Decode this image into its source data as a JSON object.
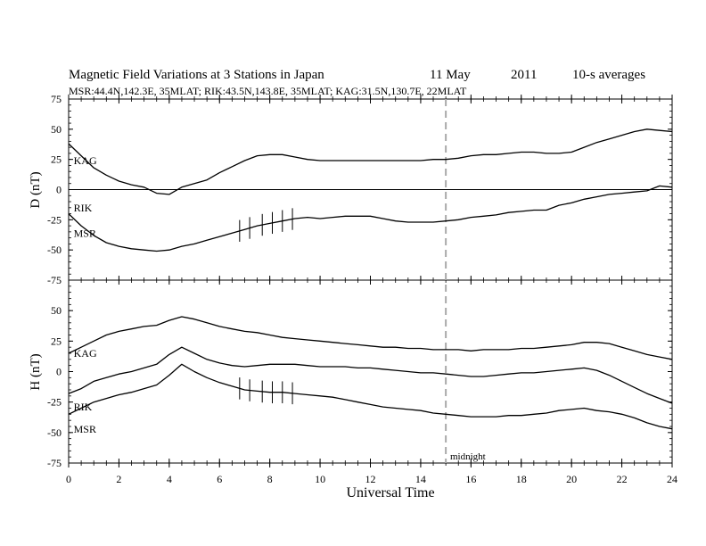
{
  "header": {
    "title": "Magnetic Field Variations at 3 Stations in Japan",
    "date_day": "11  May",
    "date_year": "2011",
    "averaging": "10-s averages",
    "stations_line": "MSR:44.4N,142.3E, 35MLAT;  RIK:43.5N,143.8E, 35MLAT;  KAG:31.5N,130.7E, 22MLAT"
  },
  "colors": {
    "trace": "#000000",
    "midnight_line": "#aaaaaa",
    "frame": "#000000"
  },
  "chart_data": [
    {
      "type": "line",
      "panel": "top",
      "ylabel": "D (nT)",
      "ylim": [
        -75,
        75
      ],
      "yticks": [
        "75",
        "50",
        "25",
        "0",
        "-25",
        "-50",
        "-75"
      ],
      "zero_line": true,
      "series": [
        {
          "name": "KAG",
          "x": [
            0,
            0.5,
            1,
            1.5,
            2,
            2.5,
            3,
            3.5,
            4,
            4.5,
            5,
            5.5,
            6,
            6.5,
            7,
            7.5,
            8,
            8.5,
            9,
            9.5,
            10,
            10.5,
            11,
            11.5,
            12,
            12.5,
            13,
            13.5,
            14,
            14.5,
            15,
            15.5,
            16,
            16.5,
            17,
            17.5,
            18,
            18.5,
            19,
            19.5,
            20,
            20.5,
            21,
            21.5,
            22,
            22.5,
            23,
            23.5,
            24
          ],
          "y": [
            38,
            28,
            18,
            12,
            7,
            4,
            2,
            -3,
            -4,
            2,
            5,
            8,
            14,
            19,
            24,
            28,
            29,
            29,
            27,
            25,
            24,
            24,
            24,
            24,
            24,
            24,
            24,
            24,
            24,
            25,
            25,
            26,
            28,
            29,
            29,
            30,
            31,
            31,
            30,
            30,
            31,
            35,
            39,
            42,
            45,
            48,
            50,
            49,
            48
          ]
        },
        {
          "name": "RIK",
          "x": [
            0,
            0.5,
            1,
            1.5,
            2,
            2.5,
            3,
            3.5,
            4,
            4.5,
            5,
            5.5,
            6,
            6.5,
            7,
            7.5,
            8,
            8.5,
            9,
            9.5,
            10,
            10.5,
            11,
            11.5,
            12,
            12.5,
            13,
            13.5,
            14,
            14.5,
            15,
            15.5,
            16,
            16.5,
            17,
            17.5,
            18,
            18.5,
            19,
            19.5,
            20,
            20.5,
            21,
            21.5,
            22,
            22.5,
            23,
            23.5,
            24
          ],
          "y": [
            -20,
            -30,
            -38,
            -44,
            -47,
            -49,
            -50,
            -51,
            -50,
            -47,
            -45,
            -42,
            -39,
            -36,
            -33,
            -30,
            -28,
            -26,
            -24,
            -23,
            -24,
            -23,
            -22,
            -22,
            -22,
            -24,
            -26,
            -27,
            -27,
            -27,
            -26,
            -25,
            -23,
            -22,
            -21,
            -19,
            -18,
            -17,
            -17,
            -13,
            -11,
            -8,
            -6,
            -4,
            -3,
            -2,
            -1,
            3,
            2
          ]
        }
      ],
      "data_labels": [
        "KAG",
        "RIK",
        "MSR"
      ]
    },
    {
      "type": "line",
      "panel": "bottom",
      "ylabel": "H (nT)",
      "ylim": [
        -75,
        75
      ],
      "yticks": [
        "50",
        "25",
        "0",
        "-25",
        "-50",
        "-75"
      ],
      "series": [
        {
          "name": "KAG",
          "x": [
            0,
            0.5,
            1,
            1.5,
            2,
            2.5,
            3,
            3.5,
            4,
            4.5,
            5,
            5.5,
            6,
            6.5,
            7,
            7.5,
            8,
            8.5,
            9,
            9.5,
            10,
            10.5,
            11,
            11.5,
            12,
            12.5,
            13,
            13.5,
            14,
            14.5,
            15,
            15.5,
            16,
            16.5,
            17,
            17.5,
            18,
            18.5,
            19,
            19.5,
            20,
            20.5,
            21,
            21.5,
            22,
            22.5,
            23,
            23.5,
            24
          ],
          "y": [
            15,
            20,
            25,
            30,
            33,
            35,
            37,
            38,
            42,
            45,
            43,
            40,
            37,
            35,
            33,
            32,
            30,
            28,
            27,
            26,
            25,
            24,
            23,
            22,
            21,
            20,
            20,
            19,
            19,
            18,
            18,
            18,
            17,
            18,
            18,
            18,
            19,
            19,
            20,
            21,
            22,
            24,
            24,
            23,
            20,
            17,
            14,
            12,
            10
          ]
        },
        {
          "name": "RIK",
          "x": [
            0,
            0.5,
            1,
            1.5,
            2,
            2.5,
            3,
            3.5,
            4,
            4.5,
            5,
            5.5,
            6,
            6.5,
            7,
            7.5,
            8,
            8.5,
            9,
            9.5,
            10,
            10.5,
            11,
            11.5,
            12,
            12.5,
            13,
            13.5,
            14,
            14.5,
            15,
            15.5,
            16,
            16.5,
            17,
            17.5,
            18,
            18.5,
            19,
            19.5,
            20,
            20.5,
            21,
            21.5,
            22,
            22.5,
            23,
            23.5,
            24
          ],
          "y": [
            -18,
            -14,
            -8,
            -5,
            -2,
            0,
            3,
            6,
            14,
            20,
            15,
            10,
            7,
            5,
            4,
            5,
            6,
            6,
            6,
            5,
            4,
            4,
            4,
            3,
            3,
            2,
            1,
            0,
            -1,
            -1,
            -2,
            -3,
            -4,
            -4,
            -3,
            -2,
            -1,
            -1,
            0,
            1,
            2,
            3,
            1,
            -3,
            -8,
            -13,
            -18,
            -22,
            -26
          ]
        },
        {
          "name": "MSR",
          "x": [
            0,
            0.5,
            1,
            1.5,
            2,
            2.5,
            3,
            3.5,
            4,
            4.5,
            5,
            5.5,
            6,
            6.5,
            7,
            7.5,
            8,
            8.5,
            9,
            9.5,
            10,
            10.5,
            11,
            11.5,
            12,
            12.5,
            13,
            13.5,
            14,
            14.5,
            15,
            15.5,
            16,
            16.5,
            17,
            17.5,
            18,
            18.5,
            19,
            19.5,
            20,
            20.5,
            21,
            21.5,
            22,
            22.5,
            23,
            23.5,
            24
          ],
          "y": [
            -35,
            -30,
            -25,
            -22,
            -19,
            -17,
            -14,
            -11,
            -3,
            6,
            0,
            -5,
            -9,
            -12,
            -15,
            -16,
            -17,
            -17,
            -18,
            -19,
            -20,
            -21,
            -23,
            -25,
            -27,
            -29,
            -30,
            -31,
            -32,
            -34,
            -35,
            -36,
            -37,
            -37,
            -37,
            -36,
            -36,
            -35,
            -34,
            -32,
            -31,
            -30,
            -32,
            -33,
            -35,
            -38,
            -42,
            -45,
            -47
          ]
        }
      ],
      "data_labels": [
        "KAG",
        "RIK",
        "MSR"
      ],
      "annotation": "midnight"
    }
  ],
  "x_axis": {
    "label": "Universal Time",
    "xlim": [
      0,
      24
    ],
    "ticks": [
      "0",
      "2",
      "4",
      "6",
      "8",
      "10",
      "12",
      "14",
      "16",
      "18",
      "20",
      "22",
      "24"
    ],
    "midnight_marker_ut": 15
  }
}
